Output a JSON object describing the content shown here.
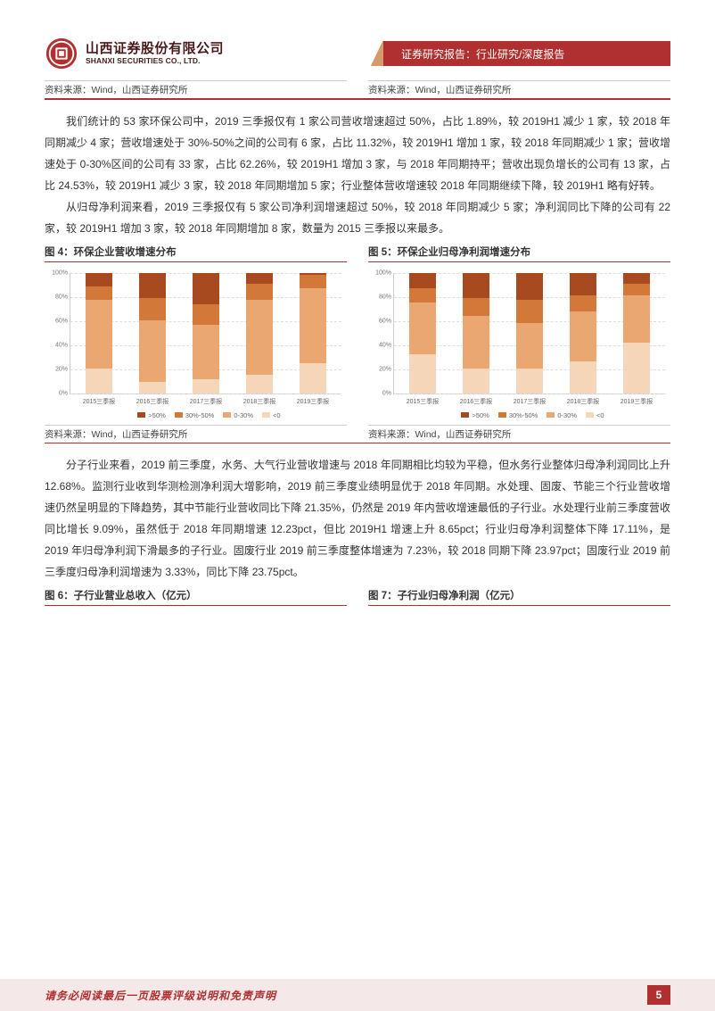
{
  "header": {
    "company_cn": "山西证券股份有限公司",
    "company_en": "SHANXI SECURITIES CO., LTD.",
    "banner": "证券研究报告：行业研究/深度报告"
  },
  "source_top": {
    "left": "资料来源：Wind，山西证券研究所",
    "right": "资料来源：Wind，山西证券研究所"
  },
  "para1": "我们统计的 53 家环保公司中，2019 三季报仅有 1 家公司营收增速超过 50%，占比 1.89%，较 2019H1 减少 1 家，较 2018 年同期减少 4 家；营收增速处于 30%-50%之间的公司有 6 家，占比 11.32%，较 2019H1 增加 1 家，较 2018 年同期减少 1 家；营收增速处于 0-30%区间的公司有 33 家，占比 62.26%，较 2019H1 增加 3 家，与 2018 年同期持平；营收出现负增长的公司有 13 家，占比 24.53%，较 2019H1 减少 3 家，较 2018 年同期增加 5 家；行业整体营收增速较 2018 年同期继续下降，较 2019H1 略有好转。",
  "para2": "从归母净利润来看，2019 三季报仅有 5 家公司净利润增速超过 50%，较 2018 年同期减少 5 家；净利润同比下降的公司有 22 家，较 2019H1 增加 3 家，较 2018 年同期增加 8 家，数量为 2015 三季报以来最多。",
  "chart4_title": "图 4：环保企业营收增速分布",
  "chart5_title": "图 5：环保企业归母净利润增速分布",
  "colors": {
    "over50": "#a84a1f",
    "r30_50": "#d27838",
    "r0_30": "#eaa771",
    "neg": "#f5d6b8",
    "grid": "#e5e5e5",
    "divider": "#b03030",
    "banner_bg": "#b03030",
    "banner_accent": "#d89a6a"
  },
  "chart4": {
    "type": "stacked_bar_pct",
    "categories": [
      "2015三季报",
      "2016三季报",
      "2017三季报",
      "2018三季报",
      "2019三季报"
    ],
    "ylim": [
      0,
      100
    ],
    "ytick_step": 20,
    "series_colors": [
      "#a84a1f",
      "#d27838",
      "#eaa771",
      "#f5d6b8"
    ],
    "series_labels": [
      ">50%",
      "30%-50%",
      "0-30%",
      "<0"
    ],
    "data": [
      [
        11.32,
        11.32,
        56.6,
        20.75
      ],
      [
        20.75,
        18.87,
        50.94,
        9.43
      ],
      [
        26.42,
        16.98,
        45.28,
        11.32
      ],
      [
        9.43,
        13.21,
        62.26,
        15.09
      ],
      [
        1.89,
        11.32,
        62.26,
        24.53
      ]
    ]
  },
  "chart5": {
    "type": "stacked_bar_pct",
    "categories": [
      "2015三季报",
      "2016三季报",
      "2017三季报",
      "2018三季报",
      "2019三季报"
    ],
    "ylim": [
      0,
      100
    ],
    "ytick_step": 20,
    "series_colors": [
      "#a84a1f",
      "#d27838",
      "#eaa771",
      "#f5d6b8"
    ],
    "series_labels": [
      ">50%",
      "30%-50%",
      "0-30%",
      "<0"
    ],
    "data": [
      [
        13.21,
        11.32,
        43.4,
        32.08
      ],
      [
        20.75,
        15.09,
        43.4,
        20.75
      ],
      [
        22.64,
        18.87,
        37.74,
        20.75
      ],
      [
        18.87,
        13.21,
        41.51,
        26.42
      ],
      [
        9.43,
        9.43,
        39.62,
        41.51
      ]
    ]
  },
  "source_mid": {
    "left": "资料来源：Wind，山西证券研究所",
    "right": "资料来源：Wind，山西证券研究所"
  },
  "para3": "分子行业来看，2019 前三季度，水务、大气行业营收增速与 2018 年同期相比均较为平稳，但水务行业整体归母净利润同比上升 12.68%。监测行业收到华测检测净利润大增影响，2019 前三季度业绩明显优于 2018 年同期。水处理、固废、节能三个行业营收增速仍然呈明显的下降趋势，其中节能行业营收同比下降 21.35%，仍然是 2019 年内营收增速最低的子行业。水处理行业前三季度营收同比增长 9.09%，虽然低于 2018 年同期增速 12.23pct，但比 2019H1 增速上升 8.65pct；行业归母净利润整体下降 17.11%，是 2019 年归母净利润下滑最多的子行业。固废行业 2019 前三季度整体增速为 7.23%，较 2018 同期下降 23.97pct；固废行业 2019 前三季度归母净利润增速为 3.33%，同比下降 23.75pct。",
  "chart6_title": "图 6：子行业营业总收入（亿元）",
  "chart7_title": "图 7：子行业归母净利润（亿元）",
  "footer": {
    "text": "请务必阅读最后一页股票评级说明和免责声明",
    "page": "5"
  },
  "legend_labels": [
    ">50%",
    "30%-50%",
    "0-30%",
    "<0"
  ]
}
